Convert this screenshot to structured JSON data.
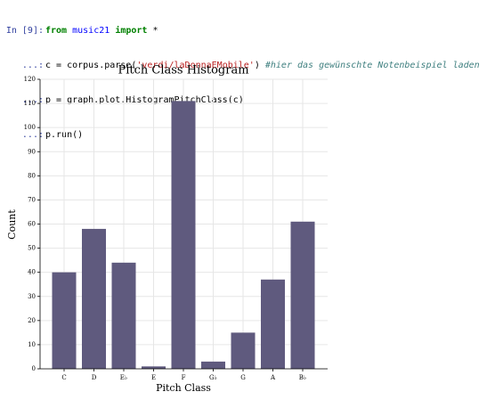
{
  "cell": {
    "prompt": "In [9]:",
    "continuation": "...:",
    "lines": [
      [
        "from",
        " ",
        "music21",
        " ",
        "import",
        " *"
      ],
      [
        "c = corpus.parse(",
        "'verdi/laDonnaEMobile'",
        ")",
        " #hier das gewünschte Notenbeispiel laden"
      ],
      [
        "p = graph.plot.HistogramPitchClass(c)"
      ],
      [
        "p.run()"
      ]
    ]
  },
  "chart_data": {
    "type": "bar",
    "title": "Pitch Class Histogram",
    "x_label": "Pitch Class",
    "y_label": "Count",
    "categories": [
      "C",
      "D",
      "E♭",
      "E",
      "F",
      "G♭",
      "G",
      "A",
      "B♭"
    ],
    "values": [
      40,
      58,
      44,
      1,
      111,
      3,
      15,
      37,
      61
    ],
    "color": "#5f5a7e",
    "ylim": [
      0,
      120
    ],
    "yticks": [
      0,
      10,
      20,
      30,
      40,
      50,
      60,
      70,
      80,
      90,
      100,
      110,
      120
    ],
    "grid": true
  }
}
